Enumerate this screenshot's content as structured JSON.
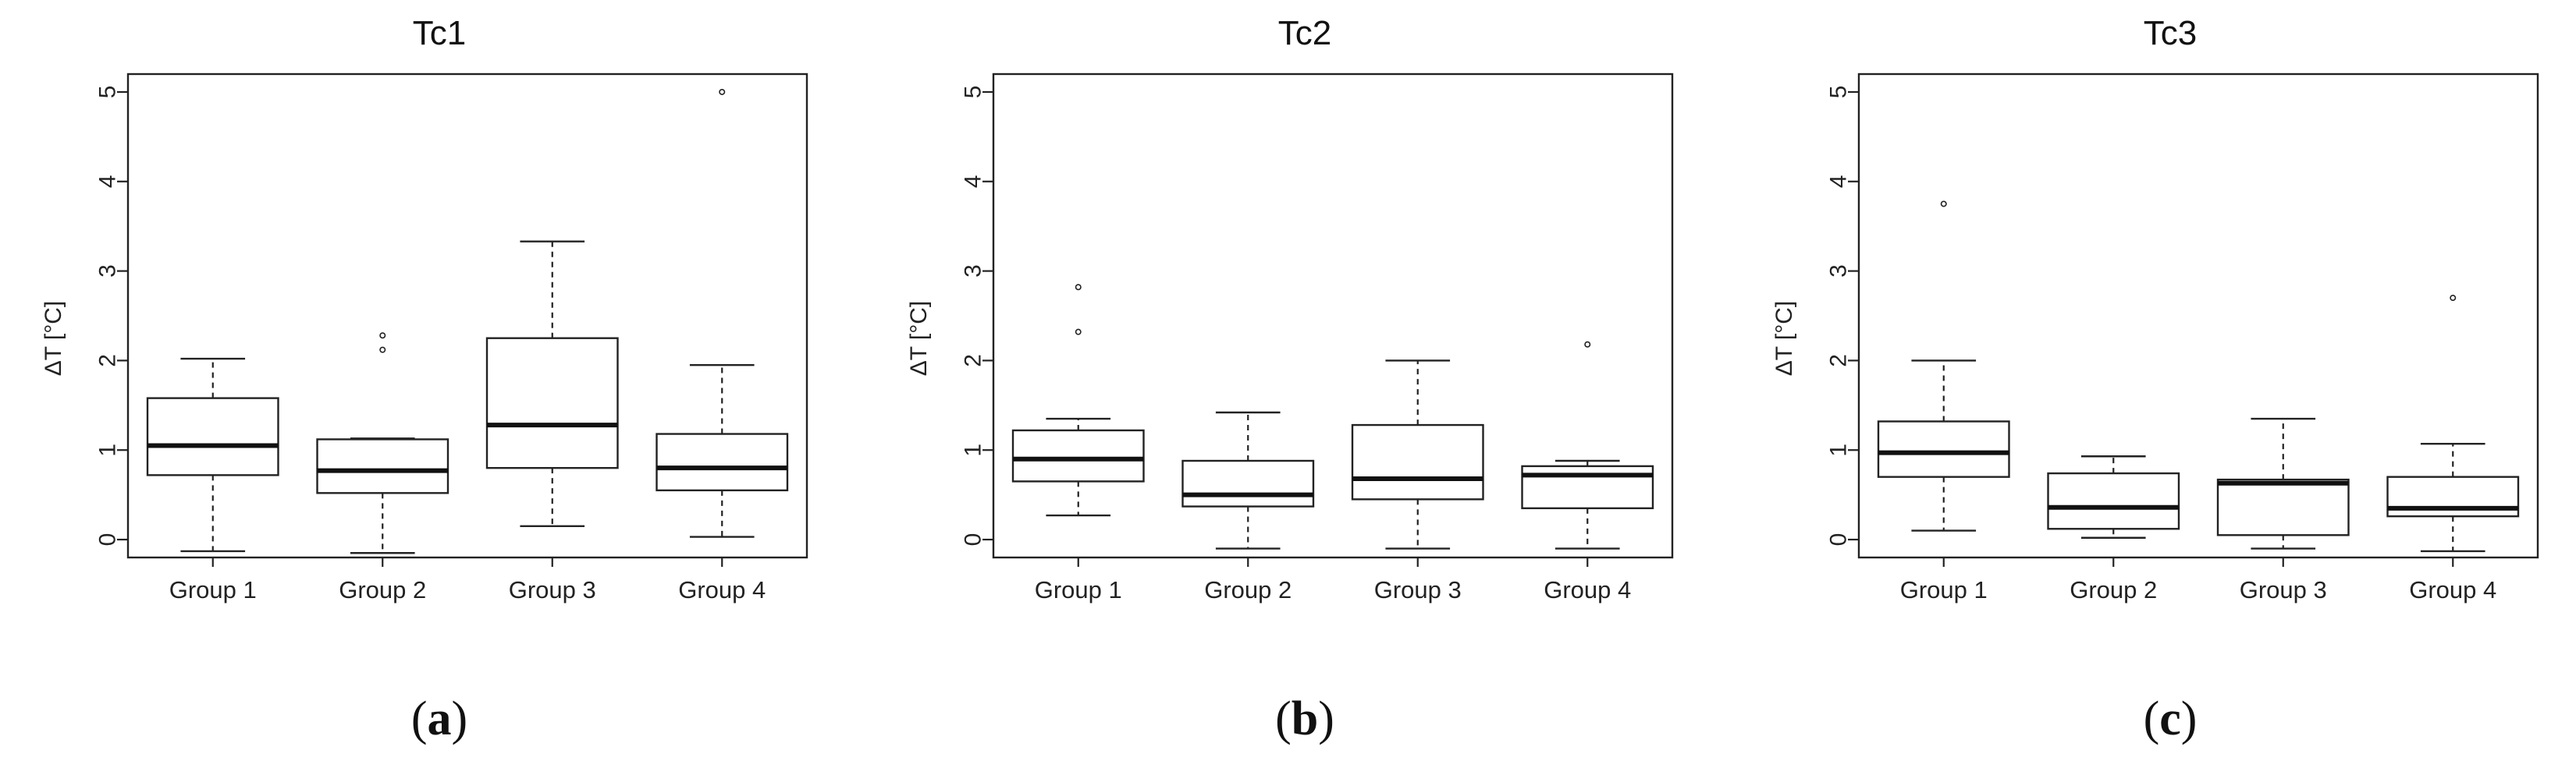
{
  "figure": {
    "background": "#ffffff",
    "ink": "#222222"
  },
  "chart_data": [
    {
      "type": "box",
      "title": "Tc1",
      "subfigure_label": "a",
      "ylabel": "ΔT [°C]",
      "xlabel": "",
      "ylim": [
        -0.2,
        5.2
      ],
      "yticks": [
        "0",
        "1",
        "2",
        "3",
        "4",
        "5"
      ],
      "categories": [
        "Group 1",
        "Group 2",
        "Group 3",
        "Group 4"
      ],
      "boxes": [
        {
          "min": -0.13,
          "q1": 0.72,
          "median": 1.05,
          "q3": 1.58,
          "max": 2.02,
          "outliers": []
        },
        {
          "min": -0.15,
          "q1": 0.52,
          "median": 0.77,
          "q3": 1.12,
          "max": 1.13,
          "outliers": [
            2.12,
            2.28
          ]
        },
        {
          "min": 0.15,
          "q1": 0.8,
          "median": 1.28,
          "q3": 2.25,
          "max": 3.33,
          "outliers": []
        },
        {
          "min": 0.03,
          "q1": 0.55,
          "median": 0.8,
          "q3": 1.18,
          "max": 1.95,
          "outliers": [
            5.0
          ]
        }
      ]
    },
    {
      "type": "box",
      "title": "Tc2",
      "subfigure_label": "b",
      "ylabel": "ΔT [°C]",
      "xlabel": "",
      "ylim": [
        -0.2,
        5.2
      ],
      "yticks": [
        "0",
        "1",
        "2",
        "3",
        "4",
        "5"
      ],
      "categories": [
        "Group 1",
        "Group 2",
        "Group 3",
        "Group 4"
      ],
      "boxes": [
        {
          "min": 0.27,
          "q1": 0.65,
          "median": 0.9,
          "q3": 1.22,
          "max": 1.35,
          "outliers": [
            2.32,
            2.82
          ]
        },
        {
          "min": -0.1,
          "q1": 0.37,
          "median": 0.5,
          "q3": 0.88,
          "max": 1.42,
          "outliers": []
        },
        {
          "min": -0.1,
          "q1": 0.45,
          "median": 0.68,
          "q3": 1.28,
          "max": 2.0,
          "outliers": []
        },
        {
          "min": -0.1,
          "q1": 0.35,
          "median": 0.72,
          "q3": 0.82,
          "max": 0.88,
          "outliers": [
            2.18
          ]
        }
      ]
    },
    {
      "type": "box",
      "title": "Tc3",
      "subfigure_label": "c",
      "ylabel": "ΔT [°C]",
      "xlabel": "",
      "ylim": [
        -0.2,
        5.2
      ],
      "yticks": [
        "0",
        "1",
        "2",
        "3",
        "4",
        "5"
      ],
      "categories": [
        "Group 1",
        "Group 2",
        "Group 3",
        "Group 4"
      ],
      "boxes": [
        {
          "min": 0.1,
          "q1": 0.7,
          "median": 0.97,
          "q3": 1.32,
          "max": 2.0,
          "outliers": [
            3.75
          ]
        },
        {
          "min": 0.02,
          "q1": 0.12,
          "median": 0.36,
          "q3": 0.74,
          "max": 0.93,
          "outliers": []
        },
        {
          "min": -0.1,
          "q1": 0.05,
          "median": 0.63,
          "q3": 0.67,
          "max": 1.35,
          "outliers": []
        },
        {
          "min": -0.13,
          "q1": 0.26,
          "median": 0.35,
          "q3": 0.7,
          "max": 1.07,
          "outliers": [
            2.7
          ]
        }
      ]
    }
  ]
}
